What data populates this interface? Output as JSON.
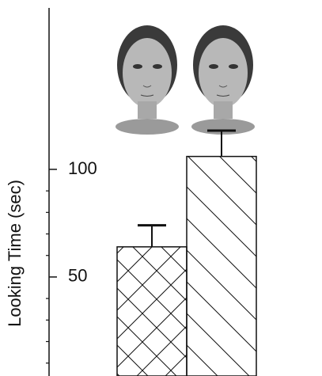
{
  "chart_data": {
    "type": "bar",
    "y_label": "Looking Time (sec)",
    "categories": [
      null,
      null
    ],
    "values": [
      64,
      106
    ],
    "errors": [
      10,
      12
    ],
    "hatch": [
      "crosshatch",
      "diagonal"
    ],
    "color": "#111111",
    "ylim": [
      4,
      175
    ],
    "yticks": [
      50,
      100
    ],
    "yminor_ticks": [
      10,
      20,
      30,
      40,
      60,
      70,
      80,
      90
    ]
  }
}
